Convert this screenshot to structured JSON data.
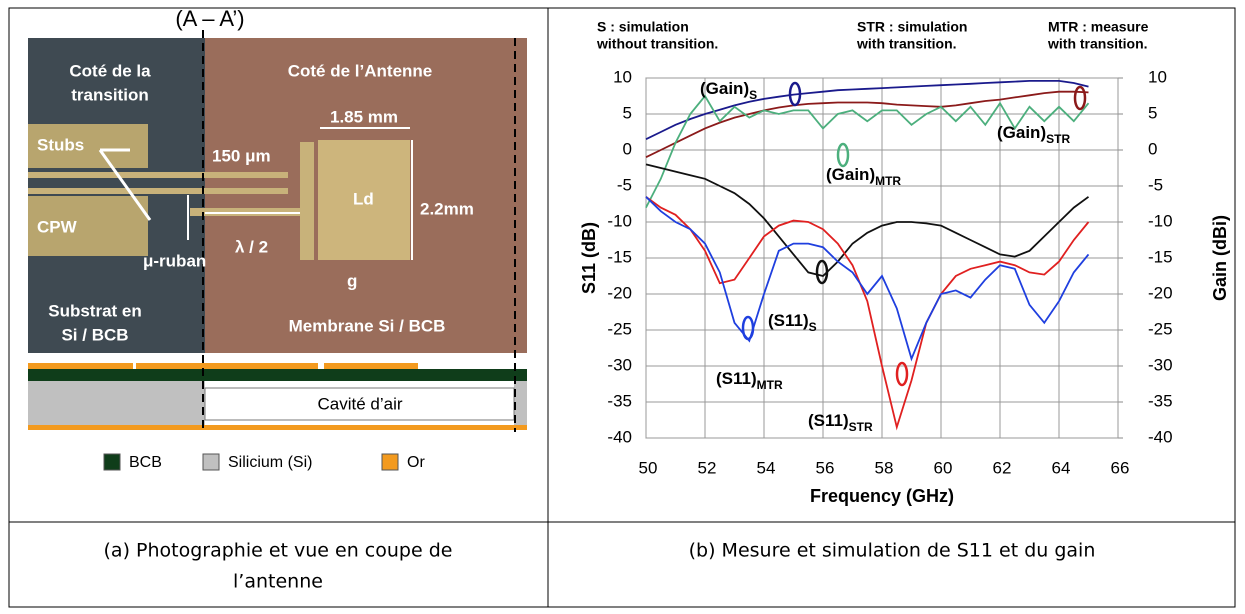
{
  "photo": {
    "section_label": "(A – A’)",
    "left_title": [
      "Coté de la",
      "transition"
    ],
    "right_title": "Coté de l’Antenne",
    "labels": {
      "stubs": "Stubs",
      "cpw": "CPW",
      "microstrip": "μ-ruban",
      "width": "150 μm",
      "half_wave": "λ / 2",
      "ld": "Ld",
      "patch_width": "1.85 mm",
      "patch_height": "2.2mm",
      "gap": "g"
    },
    "substrate": [
      "Substrat en",
      "Si / BCB"
    ],
    "membrane": "Membrane Si / BCB",
    "cavity": "Cavité d’air",
    "legend": [
      {
        "label": "BCB",
        "color": "#0f3d1a"
      },
      {
        "label": "Silicium (Si)",
        "color": "#c0c0c0"
      },
      {
        "label": "Or",
        "color": "#f39a1e"
      }
    ]
  },
  "chart_data": {
    "type": "line",
    "xlabel": "Frequency (GHz)",
    "ylabel": "S11 (dB)",
    "y2label": "Gain (dBi)",
    "notes": [
      [
        "S : simulation",
        "without transition."
      ],
      [
        "STR : simulation",
        "with transition."
      ],
      [
        "MTR : measure",
        "with transition."
      ]
    ],
    "curve_labels": [
      {
        "text": "(Gain)",
        "sub": "S"
      },
      {
        "text": "(Gain)",
        "sub": "STR"
      },
      {
        "text": "(Gain)",
        "sub": "MTR"
      },
      {
        "text": "(S11)",
        "sub": "S"
      },
      {
        "text": "(S11)",
        "sub": "STR"
      },
      {
        "text": "(S11)",
        "sub": "MTR"
      }
    ],
    "x": [
      50,
      50.5,
      51,
      51.5,
      52,
      52.5,
      53,
      53.5,
      54,
      54.5,
      55,
      55.5,
      56,
      56.5,
      57,
      57.5,
      58,
      58.5,
      59,
      59.5,
      60,
      60.5,
      61,
      61.5,
      62,
      62.5,
      63,
      63.5,
      64,
      64.5,
      65
    ],
    "xlim": [
      50,
      66
    ],
    "xticks": [
      50,
      52,
      54,
      56,
      58,
      60,
      62,
      64,
      66
    ],
    "ylim": [
      -40,
      10
    ],
    "yticks": [
      -40,
      -35,
      -30,
      -25,
      -20,
      -15,
      -10,
      -5,
      0,
      5,
      10
    ],
    "y2lim": [
      -40,
      10
    ],
    "y2ticks": [
      -40,
      -35,
      -30,
      -25,
      -20,
      -15,
      -10,
      -5,
      0,
      5,
      10
    ],
    "grid": true,
    "series": [
      {
        "color": "#1a1a8c",
        "axis": "y2",
        "values": [
          1.5,
          2.5,
          3.5,
          4.3,
          5,
          5.6,
          6.2,
          6.7,
          7.1,
          7.4,
          7.7,
          7.9,
          8.1,
          8.3,
          8.4,
          8.5,
          8.6,
          8.7,
          8.8,
          8.9,
          9,
          9.1,
          9.2,
          9.3,
          9.4,
          9.5,
          9.6,
          9.6,
          9.6,
          9.3,
          8.8
        ]
      },
      {
        "color": "#8b1a1a",
        "axis": "y2",
        "values": [
          -1,
          0,
          1,
          2,
          3,
          3.8,
          4.5,
          5,
          5.5,
          5.9,
          6.2,
          6.4,
          6.5,
          6.6,
          6.6,
          6.6,
          6.5,
          6.3,
          6.2,
          6.1,
          6,
          6.2,
          6.5,
          6.8,
          7,
          7.3,
          7.6,
          7.9,
          8.1,
          8.1,
          8
        ]
      },
      {
        "color": "#4caf7d",
        "axis": "y2",
        "values": [
          -8,
          -4,
          1,
          5,
          7.5,
          4,
          6,
          4.5,
          5.5,
          5,
          5.5,
          5.5,
          3,
          5,
          5.5,
          4,
          5.5,
          5.5,
          3.5,
          5,
          6,
          4,
          6,
          3.5,
          6.5,
          3,
          6,
          4,
          6,
          4,
          6.5
        ]
      },
      {
        "color": "#111111",
        "values": [
          -2,
          -2.5,
          -3,
          -3.5,
          -4,
          -5,
          -6,
          -7.5,
          -9.5,
          -12,
          -14.5,
          -17,
          -17.5,
          -15.5,
          -13,
          -11.5,
          -10.5,
          -10,
          -10,
          -10.2,
          -10.5,
          -11.5,
          -12.5,
          -13.5,
          -14.5,
          -14.8,
          -14,
          -12,
          -10,
          -8,
          -6.5
        ]
      },
      {
        "color": "#e02020",
        "values": [
          -6.5,
          -8,
          -9,
          -11,
          -14,
          -18.5,
          -18,
          -15,
          -12,
          -10.5,
          -9.8,
          -10,
          -11,
          -13,
          -16,
          -21,
          -30,
          -38.5,
          -32,
          -24,
          -20,
          -17.5,
          -16.5,
          -16,
          -15.5,
          -16,
          -17,
          -17.3,
          -15.5,
          -12.5,
          -10
        ]
      },
      {
        "color": "#1f3fdf",
        "values": [
          -6.5,
          -8.5,
          -10,
          -11,
          -13,
          -17,
          -24,
          -26.5,
          -20,
          -14,
          -13,
          -13,
          -13.5,
          -15.5,
          -17,
          -20,
          -17.5,
          -22,
          -29,
          -24,
          -20,
          -19.5,
          -20.5,
          -18,
          -16,
          -16.5,
          -21.5,
          -24,
          -21,
          -17,
          -14.5
        ]
      }
    ]
  },
  "captions": {
    "a": [
      "(a) Photographie et vue en coupe de",
      "l’antenne"
    ],
    "b": "(b) Mesure et simulation de S11 et du gain"
  }
}
